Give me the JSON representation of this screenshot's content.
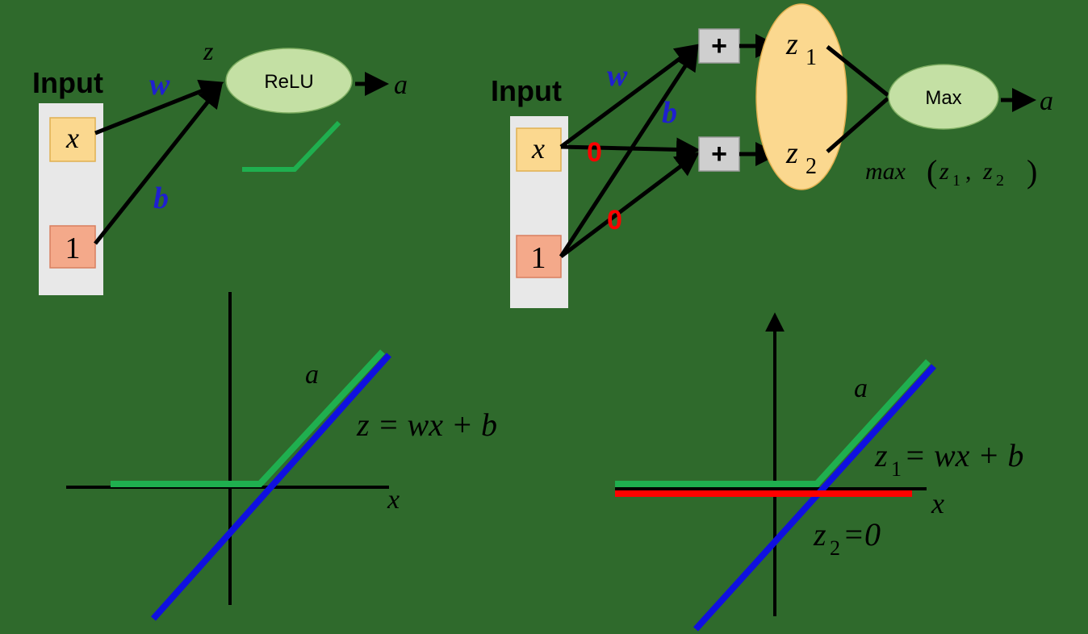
{
  "left_network": {
    "input_label": "Input",
    "x_label": "x",
    "one_label": "1",
    "weight_label": "w",
    "bias_label": "b",
    "z_label": "z",
    "activation_label": "ReLU",
    "output_label": "a"
  },
  "right_network": {
    "input_label": "Input",
    "x_label": "x",
    "one_label": "1",
    "weight_label": "w",
    "bias_label": "b",
    "zero_weight_label": "0",
    "zero_bias_label": "0",
    "plus_label_1": "+",
    "plus_label_2": "+",
    "z1_label": "z",
    "z1_sub": "1",
    "z2_label": "z",
    "z2_sub": "2",
    "max_label": "Max",
    "output_label": "a",
    "max_expr_func": "max",
    "max_expr_open": "(",
    "max_expr_z1": "z",
    "max_expr_z1_sub": "1",
    "max_expr_comma": ",",
    "max_expr_z2": "z",
    "max_expr_z2_sub": "2",
    "max_expr_close": ")"
  },
  "left_plot": {
    "output_label": "a",
    "line_label": "z = wx + b",
    "x_axis_label": "x"
  },
  "right_plot": {
    "output_label": "a",
    "z1_label_var": "z",
    "z1_label_sub": "1",
    "z1_label_rest": " = wx + b",
    "z2_label_var": "z",
    "z2_label_sub": "2",
    "z2_label_rest": " =0",
    "x_axis_label": "x"
  },
  "colors": {
    "background": "#2f6a2c",
    "input_panel": "#e8e8e8",
    "x_box": "#fbd88f",
    "one_box": "#f4a98a",
    "relu_node": "#c4e0a4",
    "group_ellipse": "#fbd88f",
    "plus_box": "#cfcfcf",
    "green_line": "#1faf4f",
    "blue_line": "#1010e0",
    "red_line": "#ff0000",
    "weight_text": "#1f1fd0",
    "zero_text": "#ff0000",
    "ink": "#000000"
  }
}
